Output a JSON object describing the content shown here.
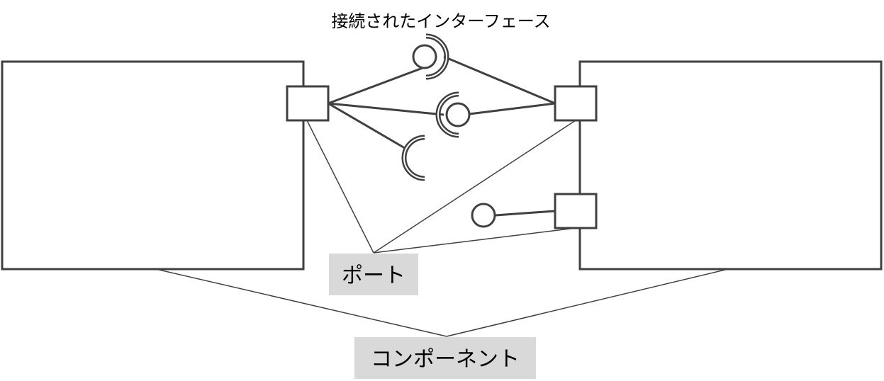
{
  "labels": {
    "connected_interface": "接続されたインターフェース",
    "port": "ポート",
    "component": "コンポーネント"
  },
  "colors": {
    "stroke": "#404040",
    "label_background": "#d9d9d9",
    "background": "#ffffff"
  }
}
